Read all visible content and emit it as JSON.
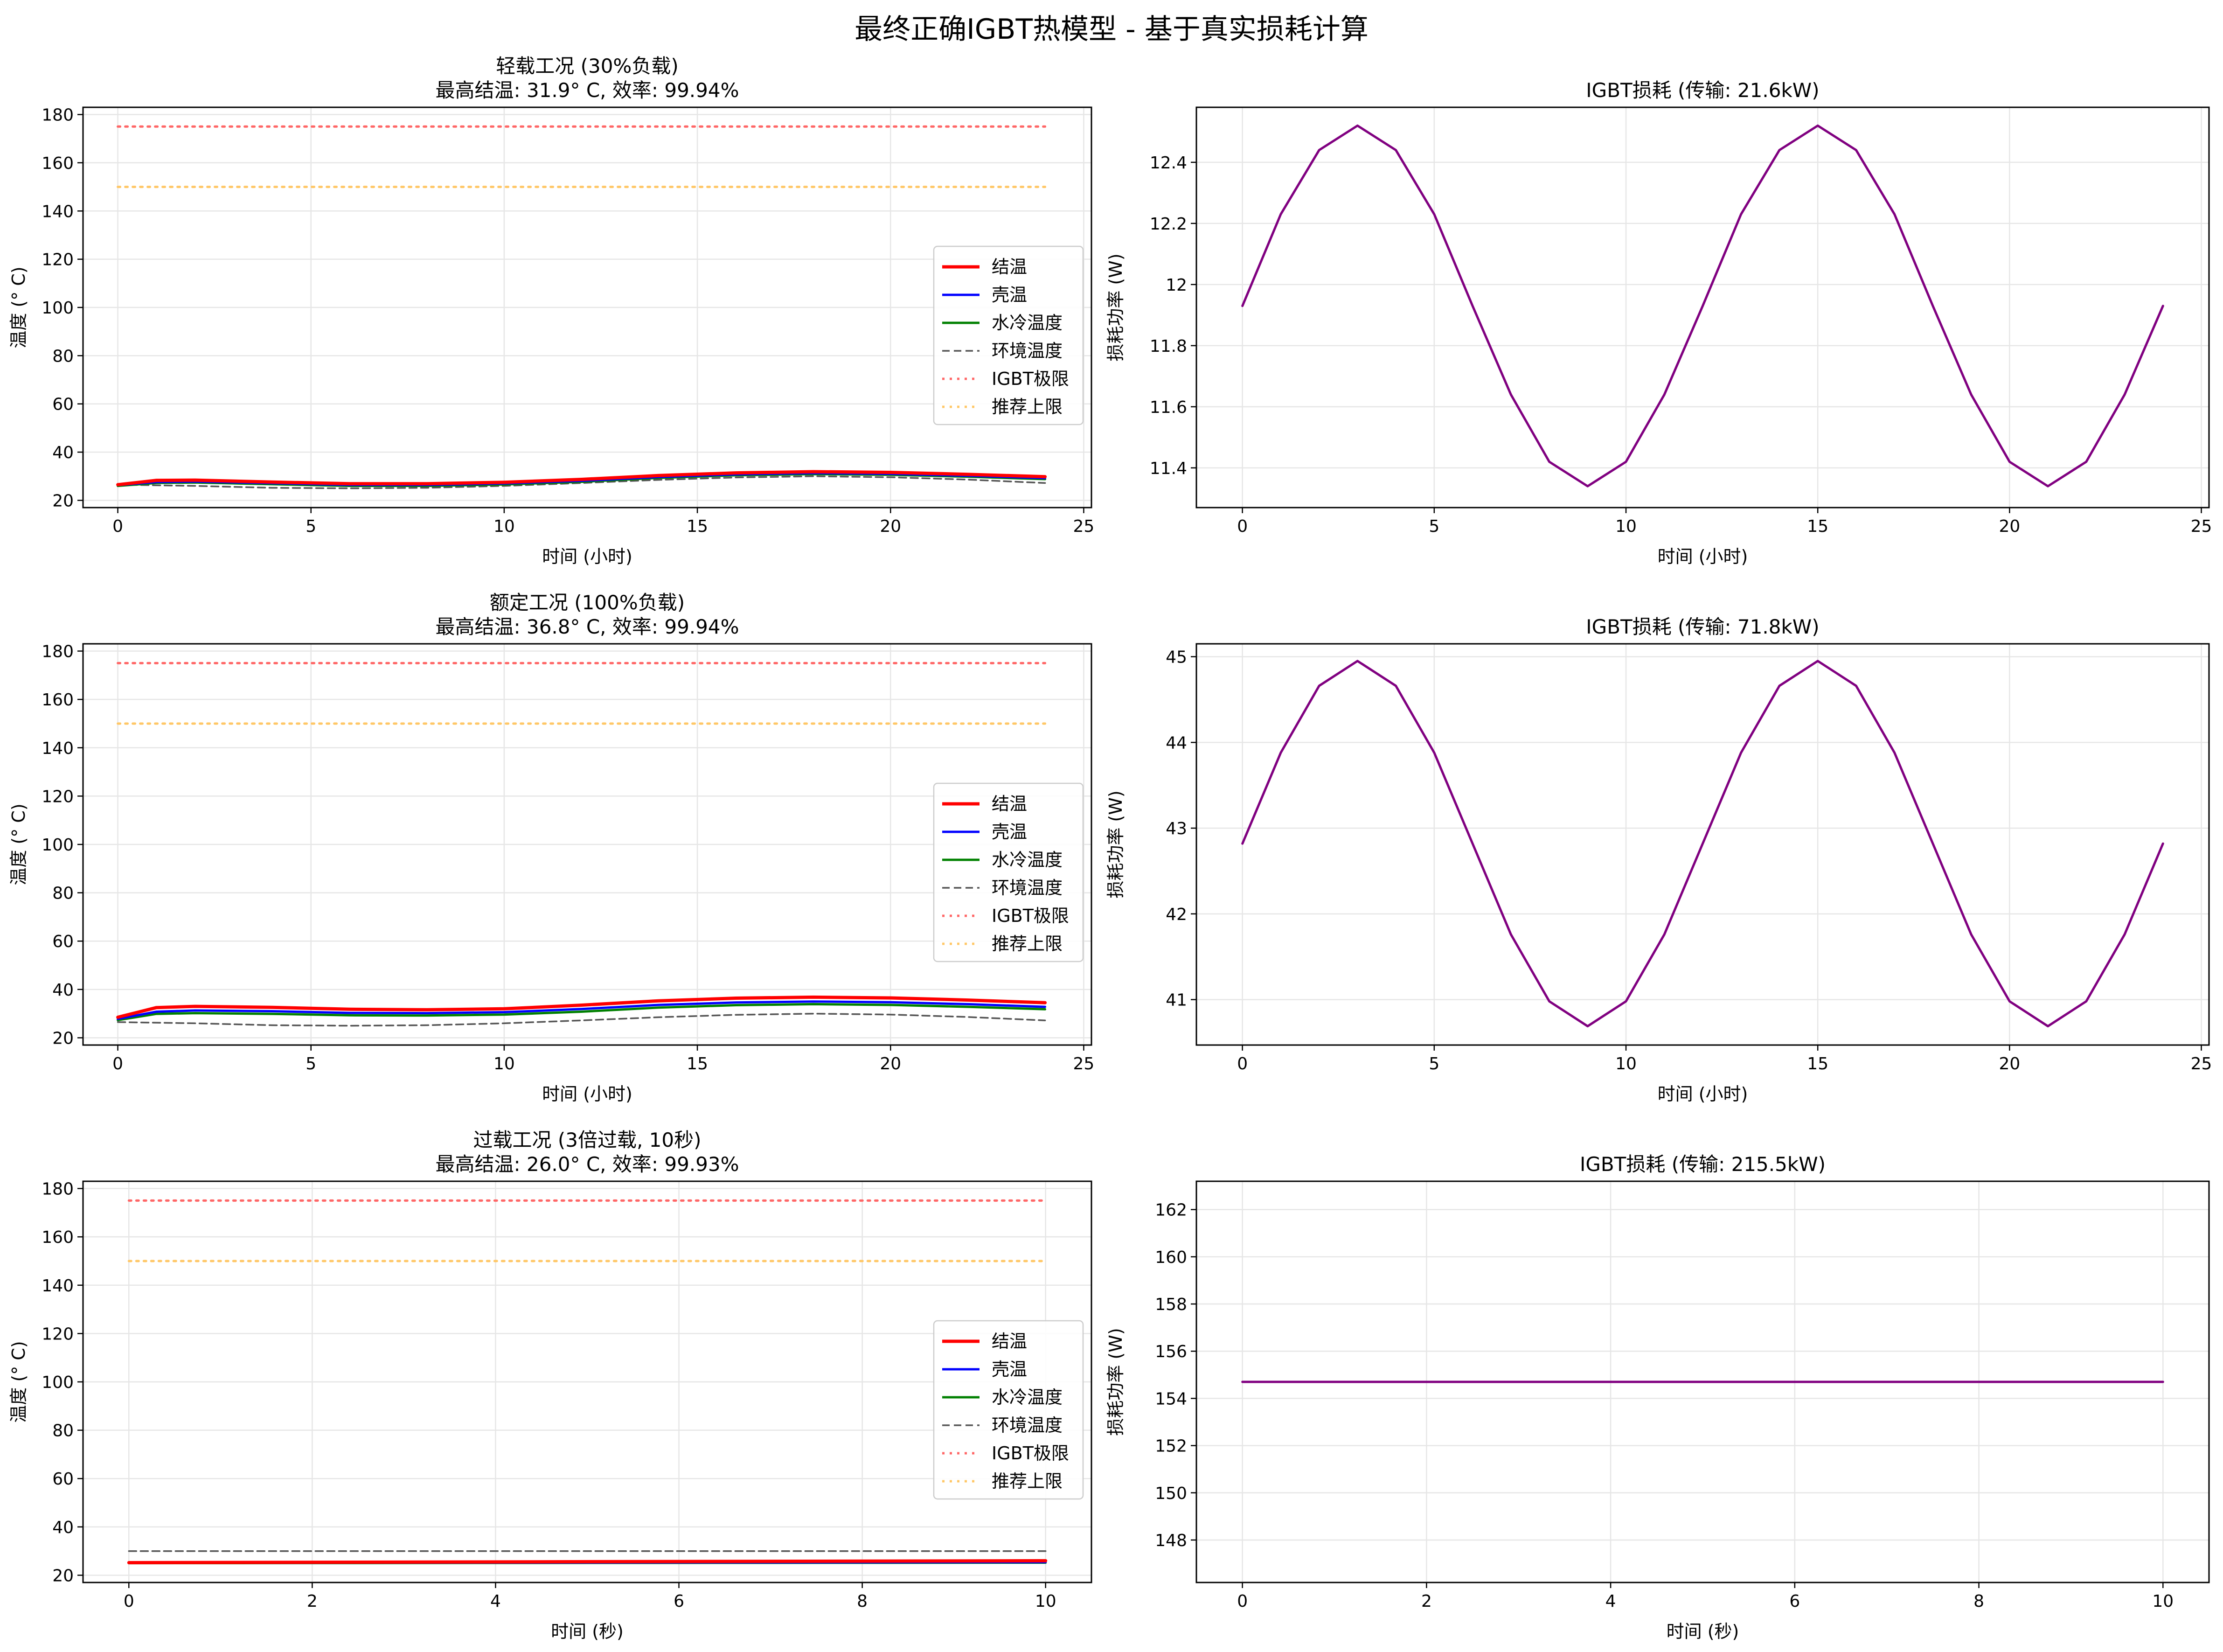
{
  "figure": {
    "title": "最终正确IGBT热模型 - 基于真实损耗计算"
  },
  "chart_data": [
    {
      "type": "line",
      "title": "轻载工况 (30%负载)\n最高结温: 31.9° C, 效率: 99.94%",
      "xlabel": "时间 (小时)",
      "ylabel": "温度 (° C)",
      "xlim": [
        -0.9,
        25.2
      ],
      "ylim": [
        17,
        183
      ],
      "xticks": [
        0,
        5,
        10,
        15,
        20,
        25
      ],
      "yticks": [
        20,
        40,
        60,
        80,
        100,
        120,
        140,
        160,
        180
      ],
      "grid": true,
      "legend": "center-right",
      "series": [
        {
          "name": "结温",
          "color": "#ff0000",
          "style": "solid-thick",
          "x": [
            0,
            1,
            2,
            4,
            6,
            8,
            10,
            12,
            14,
            16,
            18,
            20,
            22,
            24
          ],
          "values": [
            26.5,
            28.3,
            28.4,
            27.6,
            26.9,
            26.9,
            27.5,
            28.7,
            30.3,
            31.4,
            31.9,
            31.6,
            30.8,
            29.8
          ]
        },
        {
          "name": "壳温",
          "color": "#0000ff",
          "style": "solid",
          "x": [
            0,
            1,
            2,
            4,
            6,
            8,
            10,
            12,
            14,
            16,
            18,
            20,
            22,
            24
          ],
          "values": [
            26.3,
            27.6,
            27.8,
            27.1,
            26.4,
            26.4,
            27.0,
            28.1,
            29.7,
            30.8,
            31.3,
            31.0,
            30.2,
            29.2
          ]
        },
        {
          "name": "水冷温度",
          "color": "#008000",
          "style": "solid",
          "x": [
            0,
            1,
            2,
            4,
            6,
            8,
            10,
            12,
            14,
            16,
            18,
            20,
            22,
            24
          ],
          "values": [
            26.0,
            27.2,
            27.4,
            26.7,
            26.0,
            26.0,
            26.6,
            27.7,
            29.3,
            30.4,
            30.9,
            30.6,
            29.8,
            28.8
          ]
        },
        {
          "name": "环境温度",
          "color": "#555555",
          "style": "dashed",
          "x": [
            0,
            2,
            4,
            6,
            8,
            10,
            12,
            14,
            16,
            18,
            20,
            22,
            24
          ],
          "values": [
            26.5,
            26.0,
            25.2,
            25.0,
            25.2,
            26.0,
            27.2,
            28.5,
            29.5,
            30.0,
            29.6,
            28.6,
            27.2
          ]
        },
        {
          "name": "IGBT极限",
          "color": "#ff6666",
          "style": "dotted",
          "x": [
            0,
            24
          ],
          "values": [
            175,
            175
          ]
        },
        {
          "name": "推荐上限",
          "color": "#ffc766",
          "style": "dotted",
          "x": [
            0,
            24
          ],
          "values": [
            150,
            150
          ]
        }
      ]
    },
    {
      "type": "line",
      "title": "IGBT损耗 (传输: 21.6kW)",
      "xlabel": "时间 (小时)",
      "ylabel": "损耗功率 (W)",
      "xlim": [
        -1.2,
        25.2
      ],
      "ylim": [
        11.27,
        12.58
      ],
      "xticks": [
        0,
        5,
        10,
        15,
        20,
        25
      ],
      "yticks": [
        11.4,
        11.6,
        11.8,
        12.0,
        12.2,
        12.4
      ],
      "grid": true,
      "series": [
        {
          "color": "#800080",
          "style": "solid",
          "x": [
            0,
            1,
            2,
            3,
            4,
            5,
            6,
            7,
            8,
            9,
            10,
            11,
            12,
            13,
            14,
            15,
            16,
            17,
            18,
            19,
            20,
            21,
            22,
            23,
            24
          ],
          "values": [
            11.93,
            12.23,
            12.44,
            12.52,
            12.44,
            12.23,
            11.93,
            11.64,
            11.42,
            11.34,
            11.42,
            11.64,
            11.93,
            12.23,
            12.44,
            12.52,
            12.44,
            12.23,
            11.93,
            11.64,
            11.42,
            11.34,
            11.42,
            11.64,
            11.93
          ]
        }
      ]
    },
    {
      "type": "line",
      "title": "额定工况 (100%负载)\n最高结温: 36.8° C, 效率: 99.94%",
      "xlabel": "时间 (小时)",
      "ylabel": "温度 (° C)",
      "xlim": [
        -0.9,
        25.2
      ],
      "ylim": [
        17,
        183
      ],
      "xticks": [
        0,
        5,
        10,
        15,
        20,
        25
      ],
      "yticks": [
        20,
        40,
        60,
        80,
        100,
        120,
        140,
        160,
        180
      ],
      "grid": true,
      "legend": "center-right",
      "series": [
        {
          "name": "结温",
          "color": "#ff0000",
          "style": "solid-thick",
          "x": [
            0,
            1,
            2,
            4,
            6,
            8,
            10,
            12,
            14,
            16,
            18,
            20,
            22,
            24
          ],
          "values": [
            28.5,
            32.5,
            33.0,
            32.6,
            31.8,
            31.6,
            32.0,
            33.5,
            35.3,
            36.4,
            36.8,
            36.5,
            35.6,
            34.5
          ]
        },
        {
          "name": "壳温",
          "color": "#0000ff",
          "style": "solid",
          "x": [
            0,
            1,
            2,
            4,
            6,
            8,
            10,
            12,
            14,
            16,
            18,
            20,
            22,
            24
          ],
          "values": [
            27.8,
            30.8,
            31.3,
            31.0,
            30.3,
            30.2,
            30.6,
            31.9,
            33.6,
            34.6,
            35.0,
            34.7,
            33.9,
            32.8
          ]
        },
        {
          "name": "水冷温度",
          "color": "#008000",
          "style": "solid",
          "x": [
            0,
            1,
            2,
            4,
            6,
            8,
            10,
            12,
            14,
            16,
            18,
            20,
            22,
            24
          ],
          "values": [
            27.3,
            29.9,
            30.2,
            29.9,
            29.3,
            29.2,
            29.6,
            30.8,
            32.5,
            33.5,
            33.9,
            33.6,
            32.8,
            31.8
          ]
        },
        {
          "name": "环境温度",
          "color": "#555555",
          "style": "dashed",
          "x": [
            0,
            2,
            4,
            6,
            8,
            10,
            12,
            14,
            16,
            18,
            20,
            22,
            24
          ],
          "values": [
            26.5,
            26.0,
            25.2,
            25.0,
            25.2,
            26.0,
            27.2,
            28.5,
            29.5,
            30.0,
            29.6,
            28.6,
            27.2
          ]
        },
        {
          "name": "IGBT极限",
          "color": "#ff6666",
          "style": "dotted",
          "x": [
            0,
            24
          ],
          "values": [
            175,
            175
          ]
        },
        {
          "name": "推荐上限",
          "color": "#ffc766",
          "style": "dotted",
          "x": [
            0,
            24
          ],
          "values": [
            150,
            150
          ]
        }
      ]
    },
    {
      "type": "line",
      "title": "IGBT损耗 (传输: 71.8kW)",
      "xlabel": "时间 (小时)",
      "ylabel": "损耗功率 (W)",
      "xlim": [
        -1.2,
        25.2
      ],
      "ylim": [
        40.47,
        45.15
      ],
      "xticks": [
        0,
        5,
        10,
        15,
        20,
        25
      ],
      "yticks": [
        41,
        42,
        43,
        44,
        45
      ],
      "grid": true,
      "series": [
        {
          "color": "#800080",
          "style": "solid",
          "x": [
            0,
            1,
            2,
            3,
            4,
            5,
            6,
            7,
            8,
            9,
            10,
            11,
            12,
            13,
            14,
            15,
            16,
            17,
            18,
            19,
            20,
            21,
            22,
            23,
            24
          ],
          "values": [
            42.82,
            43.88,
            44.66,
            44.95,
            44.66,
            43.88,
            42.82,
            41.76,
            40.98,
            40.69,
            40.98,
            41.76,
            42.82,
            43.88,
            44.66,
            44.95,
            44.66,
            43.88,
            42.82,
            41.76,
            40.98,
            40.69,
            40.98,
            41.76,
            42.82
          ]
        }
      ]
    },
    {
      "type": "line",
      "title": "过载工况 (3倍过载, 10秒)\n最高结温: 26.0° C, 效率: 99.93%",
      "xlabel": "时间 (秒)",
      "ylabel": "温度 (° C)",
      "xlim": [
        -0.5,
        10.5
      ],
      "ylim": [
        17,
        183
      ],
      "xticks": [
        0,
        2,
        4,
        6,
        8,
        10
      ],
      "yticks": [
        20,
        40,
        60,
        80,
        100,
        120,
        140,
        160,
        180
      ],
      "grid": true,
      "legend": "center-right",
      "series": [
        {
          "name": "结温",
          "color": "#ff0000",
          "style": "solid-thick",
          "x": [
            0,
            10
          ],
          "values": [
            25.2,
            26.0
          ]
        },
        {
          "name": "壳温",
          "color": "#0000ff",
          "style": "solid",
          "x": [
            0,
            10
          ],
          "values": [
            25.1,
            25.4
          ]
        },
        {
          "name": "水冷温度",
          "color": "#008000",
          "style": "solid",
          "x": [
            0,
            10
          ],
          "values": [
            25.0,
            25.2
          ]
        },
        {
          "name": "环境温度",
          "color": "#555555",
          "style": "dashed",
          "x": [
            0,
            10
          ],
          "values": [
            30.0,
            30.0
          ]
        },
        {
          "name": "IGBT极限",
          "color": "#ff6666",
          "style": "dotted",
          "x": [
            0,
            10
          ],
          "values": [
            175,
            175
          ]
        },
        {
          "name": "推荐上限",
          "color": "#ffc766",
          "style": "dotted",
          "x": [
            0,
            10
          ],
          "values": [
            150,
            150
          ]
        }
      ]
    },
    {
      "type": "line",
      "title": "IGBT损耗 (传输: 215.5kW)",
      "xlabel": "时间 (秒)",
      "ylabel": "损耗功率 (W)",
      "xlim": [
        -0.5,
        10.5
      ],
      "ylim": [
        146.2,
        163.2
      ],
      "xticks": [
        0,
        2,
        4,
        6,
        8,
        10
      ],
      "yticks": [
        148,
        150,
        152,
        154,
        156,
        158,
        160,
        162
      ],
      "grid": true,
      "series": [
        {
          "color": "#800080",
          "style": "solid",
          "x": [
            0,
            10
          ],
          "values": [
            154.7,
            154.7
          ]
        }
      ]
    }
  ]
}
